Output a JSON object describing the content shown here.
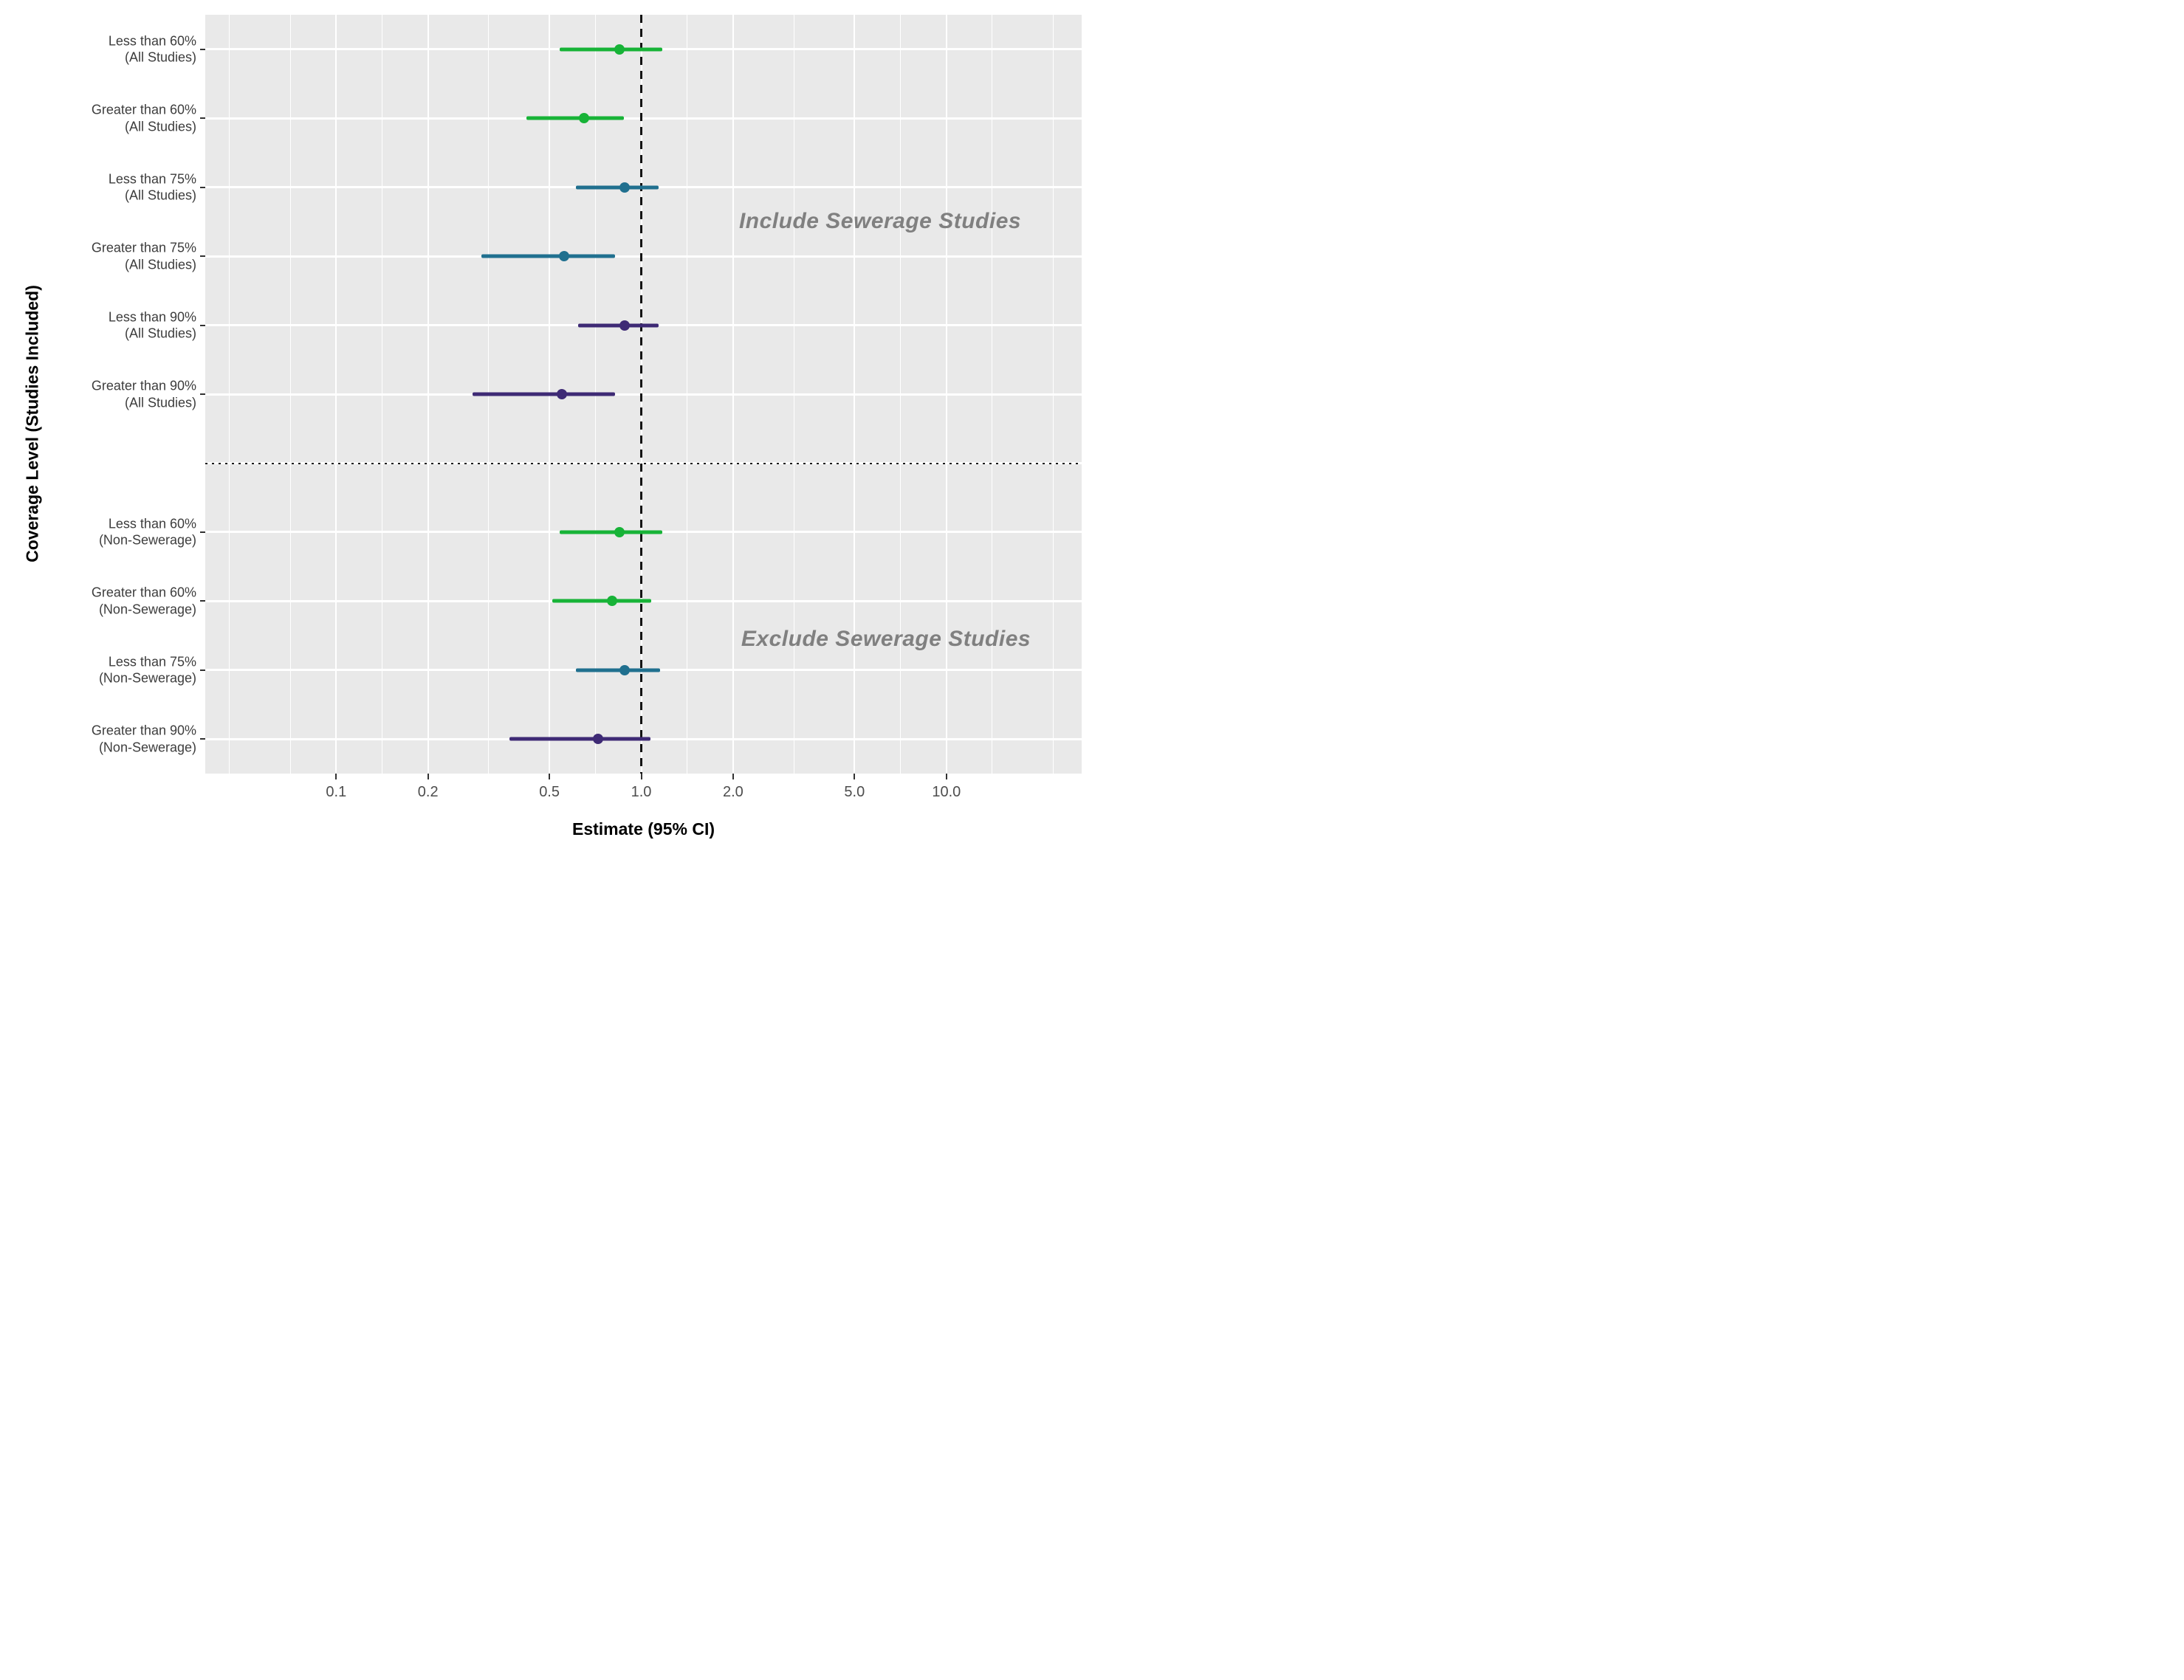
{
  "axes": {
    "x_label": "Estimate (95% CI)",
    "y_label": "Coverage Level (Studies Included)",
    "x_scale": "log10",
    "x_tick_labels": [
      "0.1",
      "0.2",
      "0.5",
      "1.0",
      "2.0",
      "5.0",
      "10.0"
    ],
    "x_tick_values": [
      0.1,
      0.2,
      0.5,
      1.0,
      2.0,
      5.0,
      10.0
    ]
  },
  "annotations": [
    {
      "text": "Include Sewerage Studies",
      "section": "top"
    },
    {
      "text": "Exclude Sewerage Studies",
      "section": "bottom"
    }
  ],
  "reference_line": {
    "x": 1.0,
    "style": "dashed",
    "color": "#141414"
  },
  "section_divider": {
    "style": "dotted",
    "color": "#1a1a1a"
  },
  "colors": {
    "green": "#17b337",
    "teal": "#20708f",
    "purple": "#3e2a75",
    "panel_background": "#e9e9e9",
    "gridline": "#ffffff",
    "annotation_text": "#808080",
    "tick_label": "#4d4d4d",
    "row_label": "#3d3d3d"
  },
  "chart_data": {
    "type": "scatter",
    "subtype": "forest-plot",
    "title": "",
    "xlabel": "Estimate (95% CI)",
    "ylabel": "Coverage Level (Studies Included)",
    "x_axis": {
      "scale": "log10",
      "ticks": [
        0.1,
        0.2,
        0.5,
        1.0,
        2.0,
        5.0,
        10.0
      ],
      "range": [
        0.037,
        27.7
      ]
    },
    "grid": "on",
    "legend": "none",
    "minor_grid_values": [
      0.0447,
      0.0707,
      0.1414,
      0.3162,
      0.7071,
      1.4142,
      3.1623,
      7.0711,
      14.142,
      22.36
    ],
    "rows": [
      {
        "label_line1": "Less than 60%",
        "label_line2": "(All Studies)",
        "section": "include",
        "estimate": 0.85,
        "ci_low": 0.54,
        "ci_high": 1.17,
        "color": "green",
        "slot": 1
      },
      {
        "label_line1": "Greater than 60%",
        "label_line2": "(All Studies)",
        "section": "include",
        "estimate": 0.65,
        "ci_low": 0.42,
        "ci_high": 0.88,
        "color": "green",
        "slot": 2
      },
      {
        "label_line1": "Less than 75%",
        "label_line2": "(All Studies)",
        "section": "include",
        "estimate": 0.88,
        "ci_low": 0.61,
        "ci_high": 1.14,
        "color": "teal",
        "slot": 3
      },
      {
        "label_line1": "Greater than 75%",
        "label_line2": "(All Studies)",
        "section": "include",
        "estimate": 0.56,
        "ci_low": 0.3,
        "ci_high": 0.82,
        "color": "teal",
        "slot": 4
      },
      {
        "label_line1": "Less than 90%",
        "label_line2": "(All Studies)",
        "section": "include",
        "estimate": 0.88,
        "ci_low": 0.62,
        "ci_high": 1.14,
        "color": "purple",
        "slot": 5
      },
      {
        "label_line1": "Greater than 90%",
        "label_line2": "(All Studies)",
        "section": "include",
        "estimate": 0.55,
        "ci_low": 0.28,
        "ci_high": 0.82,
        "color": "purple",
        "slot": 6
      },
      {
        "label_line1": "Less than 60%",
        "label_line2": "(Non-Sewerage)",
        "section": "exclude",
        "estimate": 0.85,
        "ci_low": 0.54,
        "ci_high": 1.17,
        "color": "green",
        "slot": 8
      },
      {
        "label_line1": "Greater than 60%",
        "label_line2": "(Non-Sewerage)",
        "section": "exclude",
        "estimate": 0.8,
        "ci_low": 0.51,
        "ci_high": 1.08,
        "color": "green",
        "slot": 9
      },
      {
        "label_line1": "Less than 75%",
        "label_line2": "(Non-Sewerage)",
        "section": "exclude",
        "estimate": 0.88,
        "ci_low": 0.61,
        "ci_high": 1.15,
        "color": "teal",
        "slot": 10
      },
      {
        "label_line1": "Greater than 90%",
        "label_line2": "(Non-Sewerage)",
        "section": "exclude",
        "estimate": 0.72,
        "ci_low": 0.37,
        "ci_high": 1.07,
        "color": "purple",
        "slot": 11
      }
    ],
    "divider_slot": 7,
    "annotation_positions": {
      "include_slot": 3.5,
      "exclude_slot": 9.55
    }
  }
}
